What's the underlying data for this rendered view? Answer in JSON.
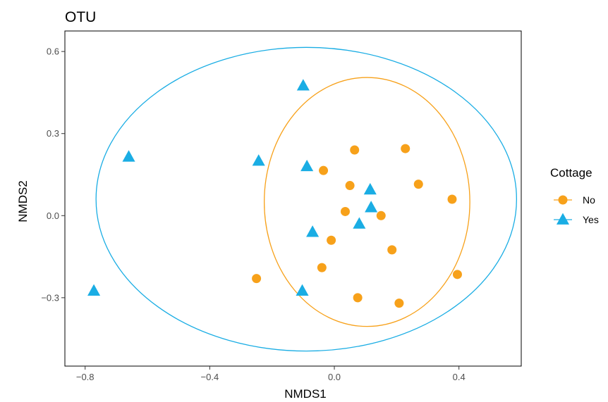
{
  "chart_data": {
    "type": "scatter",
    "title": "OTU",
    "xlabel": "NMDS1",
    "ylabel": "NMDS2",
    "xlim": [
      -0.865,
      0.6
    ],
    "ylim": [
      -0.55,
      0.675
    ],
    "x_ticks": [
      -0.8,
      -0.4,
      0.0,
      0.4
    ],
    "y_ticks": [
      -0.3,
      0.0,
      0.3,
      0.6
    ],
    "x_tick_labels": [
      "−0.8",
      "−0.4",
      "0.0",
      "0.4"
    ],
    "y_tick_labels": [
      "−0.3",
      "0.0",
      "0.3",
      "0.6"
    ],
    "grid": false,
    "legend": {
      "title": "Cottage",
      "position": "right"
    },
    "series": [
      {
        "name": "No",
        "marker": "circle",
        "color": "#F7A11A",
        "points": [
          {
            "x": 0.065,
            "y": 0.24
          },
          {
            "x": 0.228,
            "y": 0.245
          },
          {
            "x": -0.035,
            "y": 0.165
          },
          {
            "x": 0.05,
            "y": 0.11
          },
          {
            "x": 0.27,
            "y": 0.115
          },
          {
            "x": 0.378,
            "y": 0.06
          },
          {
            "x": 0.035,
            "y": 0.015
          },
          {
            "x": 0.15,
            "y": 0.0
          },
          {
            "x": -0.01,
            "y": -0.09
          },
          {
            "x": 0.185,
            "y": -0.125
          },
          {
            "x": -0.04,
            "y": -0.19
          },
          {
            "x": -0.25,
            "y": -0.23
          },
          {
            "x": 0.395,
            "y": -0.215
          },
          {
            "x": 0.075,
            "y": -0.3
          },
          {
            "x": 0.208,
            "y": -0.32
          }
        ],
        "ellipse": {
          "cx": 0.105,
          "cy": 0.05,
          "rx": 0.33,
          "ry": 0.455
        }
      },
      {
        "name": "Yes",
        "marker": "triangle",
        "color": "#1AADE4",
        "points": [
          {
            "x": -0.1,
            "y": 0.475
          },
          {
            "x": -0.66,
            "y": 0.215
          },
          {
            "x": -0.243,
            "y": 0.2
          },
          {
            "x": -0.088,
            "y": 0.18
          },
          {
            "x": 0.115,
            "y": 0.095
          },
          {
            "x": 0.118,
            "y": 0.03
          },
          {
            "x": 0.08,
            "y": -0.03
          },
          {
            "x": -0.07,
            "y": -0.06
          },
          {
            "x": -0.103,
            "y": -0.275
          },
          {
            "x": -0.772,
            "y": -0.275
          }
        ],
        "ellipse": {
          "cx": -0.09,
          "cy": 0.06,
          "rx": 0.675,
          "ry": 0.555
        }
      }
    ]
  }
}
